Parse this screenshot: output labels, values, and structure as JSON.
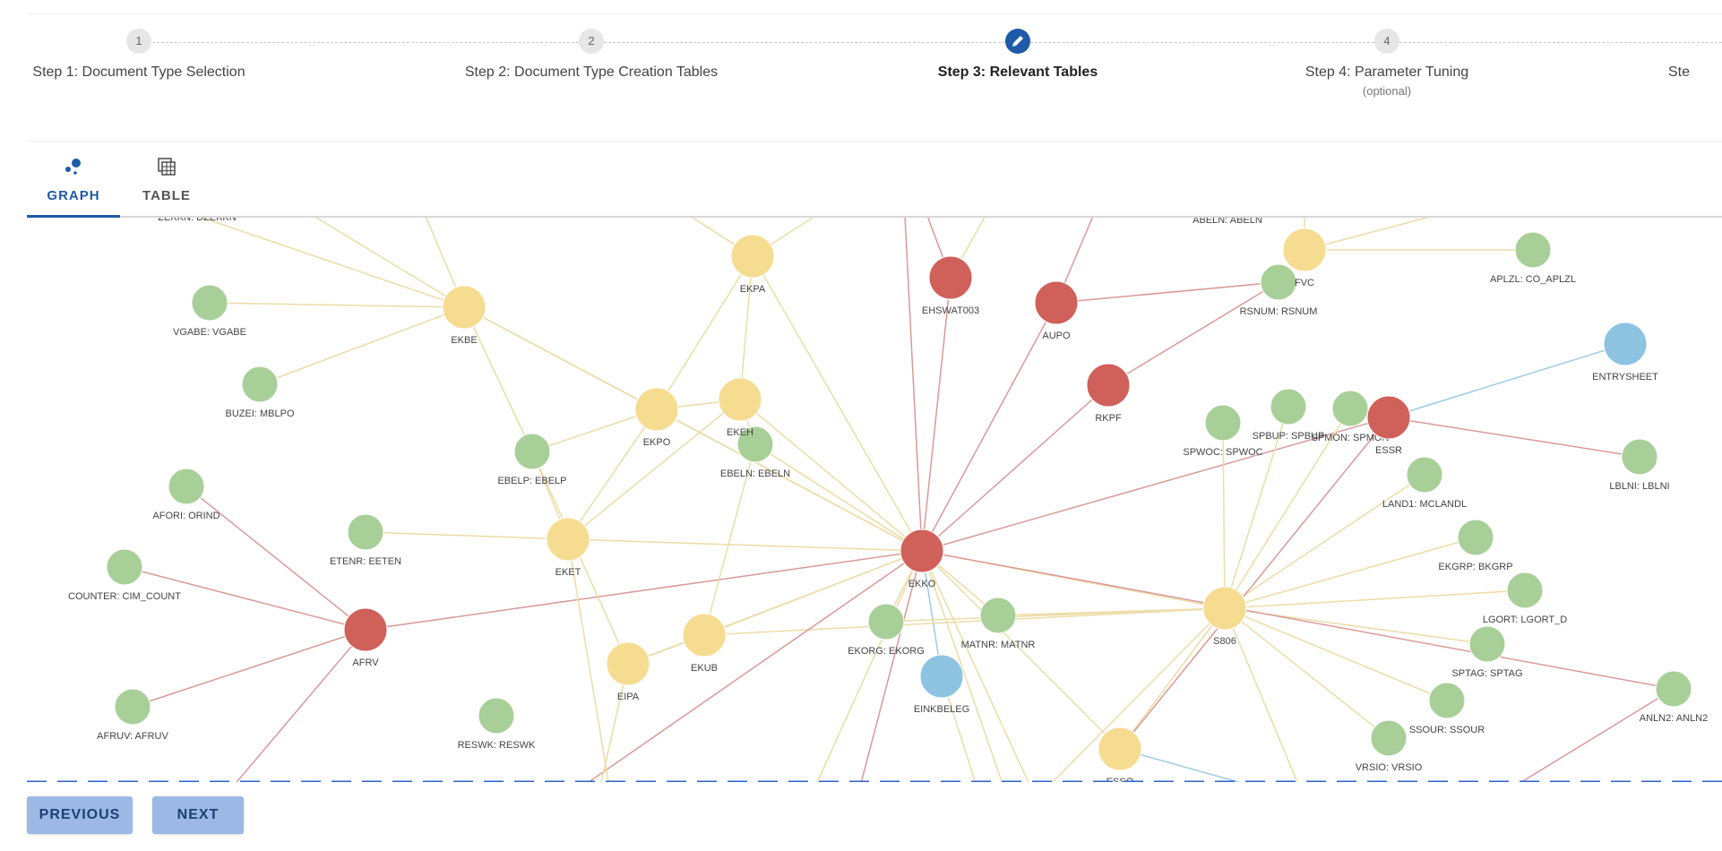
{
  "stepper": {
    "steps": [
      {
        "number": "1",
        "label": "Step 1: Document Type Selection",
        "sub": ""
      },
      {
        "number": "2",
        "label": "Step 2: Document Type Creation Tables",
        "sub": ""
      },
      {
        "number": "",
        "label": "Step 3: Relevant Tables",
        "sub": "",
        "active": true,
        "icon": "pencil-icon"
      },
      {
        "number": "4",
        "label": "Step 4: Parameter Tuning",
        "sub": "(optional)"
      },
      {
        "number": "",
        "label": "Ste",
        "sub": ""
      }
    ]
  },
  "tabs": [
    {
      "label": "GRAPH",
      "icon": "graph-icon",
      "selected": true
    },
    {
      "label": "TABLE",
      "icon": "table-icon",
      "selected": false
    }
  ],
  "graph": {
    "colors": {
      "green": "#a8cf98",
      "yellow": "#f5dc91",
      "red": "#d0605a",
      "blue": "#8ec3e1",
      "edge_yellow": "#ecdca6",
      "edge_red": "#d99a98",
      "edge_blue": "#9ccbe4"
    },
    "nodes": [
      {
        "label": "ZEKKN: DZEKKN",
        "color": "none"
      },
      {
        "label": "VGABE: VGABE",
        "color": "green"
      },
      {
        "label": "BUZEI: MBLPO",
        "color": "green"
      },
      {
        "label": "AFORI: ORIND",
        "color": "green"
      },
      {
        "label": "COUNTER: CIM_COUNT",
        "color": "green"
      },
      {
        "label": "AFRUV: AFRUV",
        "color": "green"
      },
      {
        "label": "ETENR: EETEN",
        "color": "green"
      },
      {
        "label": "RESWK: RESWK",
        "color": "green"
      },
      {
        "label": "EBELP: EBELP",
        "color": "green"
      },
      {
        "label": "EBELN: EBELN",
        "color": "green"
      },
      {
        "label": "EKORG: EKORG",
        "color": "green"
      },
      {
        "label": "MATNR: MATNR",
        "color": "green"
      },
      {
        "label": "RSNUM: RSNUM",
        "color": "green"
      },
      {
        "label": "APLZL: CO_APLZL",
        "color": "green"
      },
      {
        "label": "SPWOC: SPWOC",
        "color": "green"
      },
      {
        "label": "SPBUP: SPBUP",
        "color": "green"
      },
      {
        "label": "SPMON: SPMON",
        "color": "green"
      },
      {
        "label": "LAND1: MCLANDL",
        "color": "green"
      },
      {
        "label": "EKGRP: BKGRP",
        "color": "green"
      },
      {
        "label": "LGORT: LGORT_D",
        "color": "green"
      },
      {
        "label": "SPTAG: SPTAG",
        "color": "green"
      },
      {
        "label": "SSOUR: SSOUR",
        "color": "green"
      },
      {
        "label": "VRSIO: VRSIO",
        "color": "green"
      },
      {
        "label": "LBLNI: LBLNI",
        "color": "green"
      },
      {
        "label": "ANLN2: ANLN2",
        "color": "green"
      },
      {
        "label": "EKBE",
        "color": "yellow"
      },
      {
        "label": "EKPA",
        "color": "yellow"
      },
      {
        "label": "EKPO",
        "color": "yellow"
      },
      {
        "label": "EKET",
        "color": "yellow"
      },
      {
        "label": "EKUB",
        "color": "yellow"
      },
      {
        "label": "EIPA",
        "color": "yellow"
      },
      {
        "label": "S806",
        "color": "yellow"
      },
      {
        "label": "FVC",
        "color": "yellow"
      },
      {
        "label": "EKEH",
        "color": "yellow"
      },
      {
        "label": "ESSO",
        "color": "yellow"
      },
      {
        "label": "AFRV",
        "color": "red"
      },
      {
        "label": "EKKO",
        "color": "red"
      },
      {
        "label": "EHSWAT003",
        "color": "red"
      },
      {
        "label": "AUPO",
        "color": "red"
      },
      {
        "label": "RKPF",
        "color": "red"
      },
      {
        "label": "ESSR",
        "color": "red"
      },
      {
        "label": "EINKBELEG",
        "color": "blue"
      },
      {
        "label": "ENTRYSHEET",
        "color": "blue"
      },
      {
        "label": "ABELN: ABELN",
        "color": "none"
      }
    ]
  },
  "footer": {
    "previous_label": "PREVIOUS",
    "next_label": "NEXT"
  }
}
